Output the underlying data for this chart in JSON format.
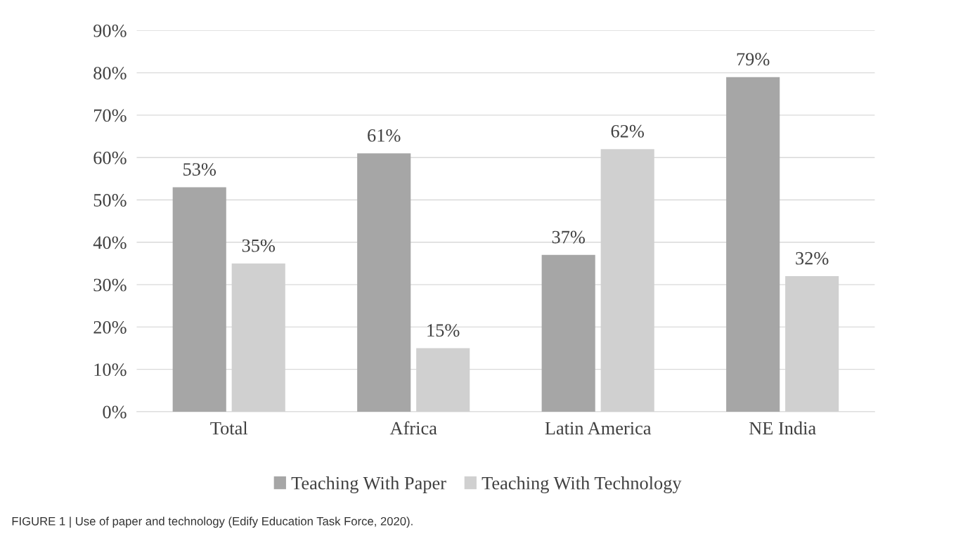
{
  "chart_data": {
    "type": "bar",
    "categories": [
      "Total",
      "Africa",
      "Latin America",
      "NE India"
    ],
    "series": [
      {
        "name": "Teaching With Paper",
        "color": "#a6a6a6",
        "values": [
          53,
          61,
          37,
          79
        ],
        "value_labels": [
          "53%",
          "61%",
          "37%",
          "79%"
        ]
      },
      {
        "name": "Teaching With Technology",
        "color": "#d0d0d0",
        "values": [
          35,
          15,
          62,
          32
        ],
        "value_labels": [
          "35%",
          "15%",
          "62%",
          "32%"
        ]
      }
    ],
    "ylim": [
      0,
      90
    ],
    "yticks": [
      {
        "value": 0,
        "label": "0%"
      },
      {
        "value": 10,
        "label": "10%"
      },
      {
        "value": 20,
        "label": "20%"
      },
      {
        "value": 30,
        "label": "30%"
      },
      {
        "value": 40,
        "label": "40%"
      },
      {
        "value": 50,
        "label": "50%"
      },
      {
        "value": 60,
        "label": "60%"
      },
      {
        "value": 70,
        "label": "70%"
      },
      {
        "value": 80,
        "label": "80%"
      },
      {
        "value": 90,
        "label": "90%"
      }
    ],
    "grid": "y",
    "legend": "bottom",
    "annotations": [
      "FIGURE 1 | Use of paper and technology (Edify Education Task Force, 2020)."
    ]
  }
}
